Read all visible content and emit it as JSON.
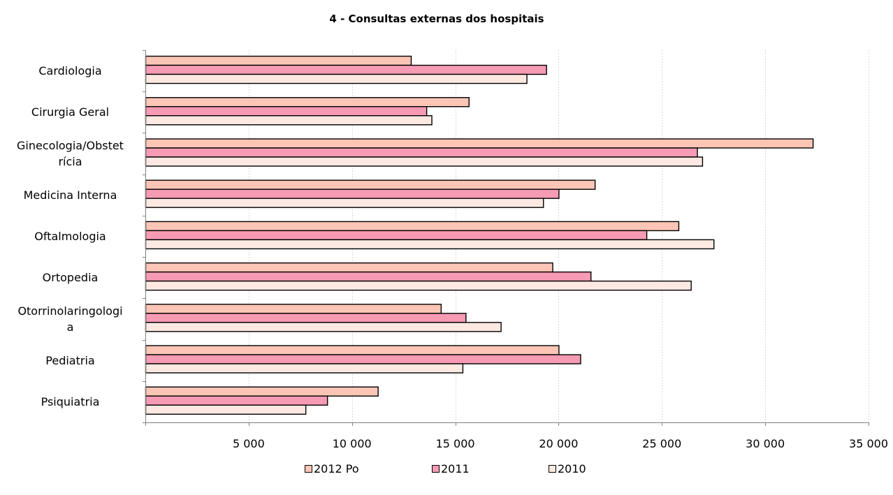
{
  "chart_data": {
    "type": "bar",
    "orientation": "horizontal",
    "title": "4 - Consultas externas dos hospitais",
    "categories": [
      "Cardiologia",
      "Cirurgia Geral",
      "Ginecologia/Obstetrícia",
      "Medicina Interna",
      "Oftalmologia",
      "Ortopedia",
      "Otorrinolaringologia",
      "Pediatria",
      "Psiquiatria"
    ],
    "category_lines": [
      [
        "Cardiologia"
      ],
      [
        "Cirurgia Geral"
      ],
      [
        "Ginecologia/Obstet",
        "rícia"
      ],
      [
        "Medicina Interna"
      ],
      [
        "Oftalmologia"
      ],
      [
        "Ortopedia"
      ],
      [
        "Otorrinolaringologi",
        "a"
      ],
      [
        "Pediatria"
      ],
      [
        "Psiquiatria"
      ]
    ],
    "series": [
      {
        "name": "2012 Po",
        "color": "#fcc5b5",
        "values": [
          12850,
          15650,
          32300,
          21750,
          25800,
          19700,
          14300,
          20000,
          11250
        ]
      },
      {
        "name": "2011",
        "color": "#f79bb5",
        "values": [
          19400,
          13600,
          26700,
          20000,
          24250,
          21550,
          15500,
          21050,
          8800
        ]
      },
      {
        "name": "2010",
        "color": "#fde9e2",
        "values": [
          18450,
          13850,
          26950,
          19250,
          27500,
          26400,
          17200,
          15350,
          7750
        ]
      }
    ],
    "xlim": [
      0,
      35000
    ],
    "xticks": [
      5000,
      10000,
      15000,
      20000,
      25000,
      30000,
      35000
    ],
    "xtick_labels": [
      "5 000",
      "10 000",
      "15 000",
      "20 000",
      "25 000",
      "30 000",
      "35 000"
    ],
    "grid": true,
    "legend_position": "bottom"
  }
}
